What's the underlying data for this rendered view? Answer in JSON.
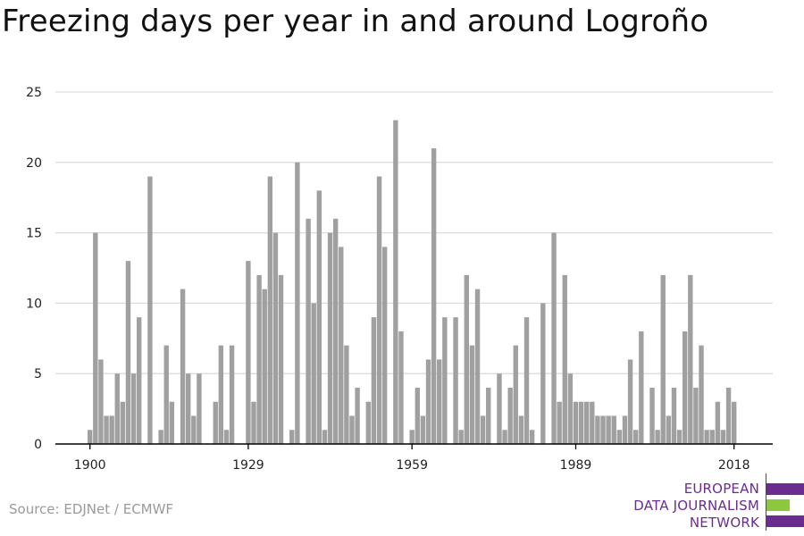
{
  "title": "Freezing days per year in and around Logroño",
  "source": "Source: EDJNet / ECMWF",
  "logo": {
    "lines": [
      "EUROPEAN",
      "DATA JOURNALISM",
      "NETWORK"
    ],
    "colors": [
      "#6b2c8f",
      "#8dc63f",
      "#6b2c8f"
    ]
  },
  "colors": {
    "bar": "#a0a0a0",
    "grid": "#dcdcdc",
    "axis": "#000000"
  },
  "chart_data": {
    "type": "bar",
    "title": "Freezing days per year in and around Logroño",
    "xlabel": "",
    "ylabel": "",
    "x_tick_labels": [
      "1900",
      "1929",
      "1959",
      "1989",
      "2018"
    ],
    "y_tick_labels": [
      "0",
      "5",
      "10",
      "15",
      "20",
      "25"
    ],
    "ylim": [
      0,
      25
    ],
    "grid": true,
    "categories": [
      1900,
      1901,
      1902,
      1903,
      1904,
      1905,
      1906,
      1907,
      1908,
      1909,
      1910,
      1911,
      1912,
      1913,
      1914,
      1915,
      1916,
      1917,
      1918,
      1919,
      1920,
      1921,
      1922,
      1923,
      1924,
      1925,
      1926,
      1927,
      1928,
      1929,
      1930,
      1931,
      1932,
      1933,
      1934,
      1935,
      1936,
      1937,
      1938,
      1939,
      1940,
      1941,
      1942,
      1943,
      1944,
      1945,
      1946,
      1947,
      1948,
      1949,
      1950,
      1951,
      1952,
      1953,
      1954,
      1955,
      1956,
      1957,
      1958,
      1959,
      1960,
      1961,
      1962,
      1963,
      1964,
      1965,
      1966,
      1967,
      1968,
      1969,
      1970,
      1971,
      1972,
      1973,
      1974,
      1975,
      1976,
      1977,
      1978,
      1979,
      1980,
      1981,
      1982,
      1983,
      1984,
      1985,
      1986,
      1987,
      1988,
      1989,
      1990,
      1991,
      1992,
      1993,
      1994,
      1995,
      1996,
      1997,
      1998,
      1999,
      2000,
      2001,
      2002,
      2003,
      2004,
      2005,
      2006,
      2007,
      2008,
      2009,
      2010,
      2011,
      2012,
      2013,
      2014,
      2015,
      2016,
      2017,
      2018
    ],
    "values": [
      1,
      15,
      6,
      2,
      2,
      5,
      3,
      13,
      5,
      9,
      0,
      19,
      0,
      1,
      7,
      3,
      0,
      11,
      5,
      2,
      5,
      0,
      0,
      3,
      7,
      1,
      7,
      0,
      0,
      13,
      3,
      12,
      11,
      19,
      15,
      12,
      0,
      1,
      20,
      0,
      16,
      10,
      18,
      1,
      15,
      16,
      14,
      7,
      2,
      4,
      0,
      3,
      9,
      19,
      14,
      0,
      23,
      8,
      0,
      1,
      4,
      2,
      6,
      21,
      6,
      9,
      0,
      9,
      1,
      12,
      7,
      11,
      2,
      4,
      0,
      5,
      1,
      4,
      7,
      2,
      9,
      1,
      0,
      10,
      0,
      15,
      3,
      12,
      5,
      3,
      3,
      3,
      3,
      2,
      2,
      2,
      2,
      1,
      2,
      6,
      1,
      8,
      0,
      4,
      1,
      12,
      2,
      4,
      1,
      8,
      12,
      4,
      7,
      1,
      1,
      3,
      1,
      4,
      3
    ]
  }
}
